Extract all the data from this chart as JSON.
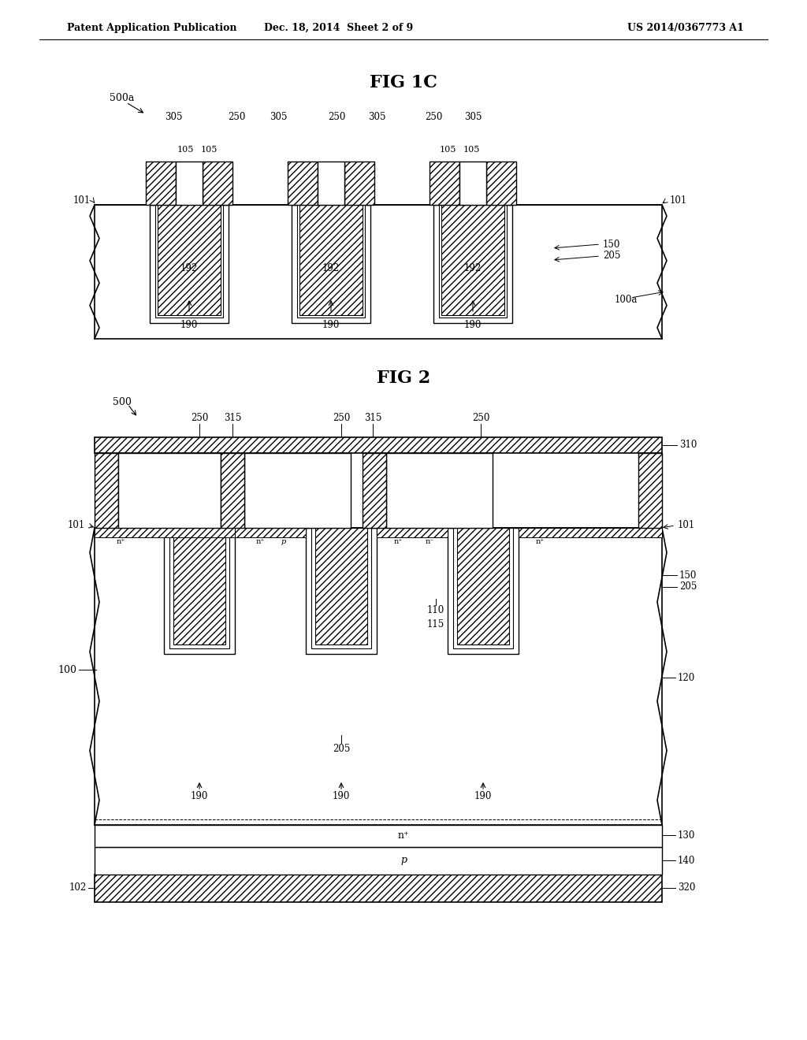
{
  "bg_color": "#ffffff",
  "header_left": "Patent Application Publication",
  "header_mid": "Dec. 18, 2014  Sheet 2 of 9",
  "header_right": "US 2014/0367773 A1",
  "fig1c_title": "FIG 1C",
  "fig2_title": "FIG 2"
}
